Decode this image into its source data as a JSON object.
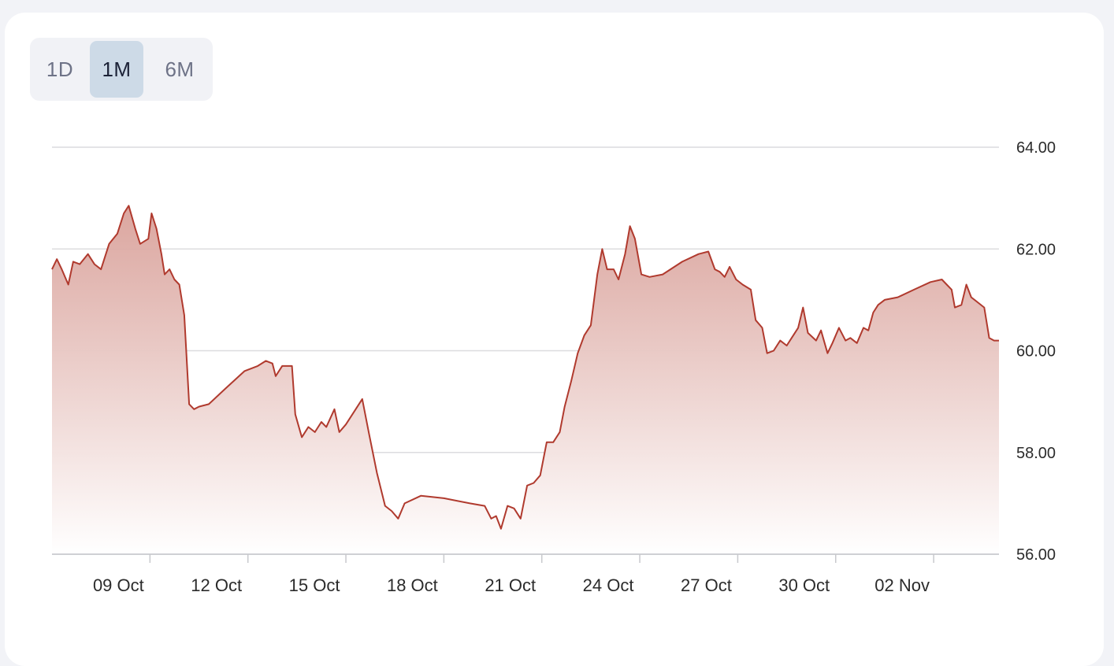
{
  "range_selector": {
    "tabs": [
      {
        "label": "1D",
        "active": false
      },
      {
        "label": "1M",
        "active": true
      },
      {
        "label": "6M",
        "active": false
      }
    ]
  },
  "colors": {
    "line": "#b03a2e",
    "fill_top": "#d9a19a",
    "fill_bottom": "#ffffff",
    "grid": "#dcdcdf",
    "active_tab": "#cddae7"
  },
  "chart_data": {
    "type": "area",
    "title": "",
    "xlabel": "",
    "ylabel": "",
    "ylim": [
      56,
      64
    ],
    "yticks": [
      "56.00",
      "58.00",
      "60.00",
      "62.00",
      "64.00"
    ],
    "y_axis_position": "right",
    "grid": true,
    "xticks": [
      "09 Oct",
      "12 Oct",
      "15 Oct",
      "18 Oct",
      "21 Oct",
      "24 Oct",
      "27 Oct",
      "30 Oct",
      "02 Nov"
    ],
    "x_range": [
      "06 Oct",
      "05 Nov"
    ],
    "series": [
      {
        "values": [
          [
            0.0,
            61.6
          ],
          [
            0.15,
            61.8
          ],
          [
            0.3,
            61.6
          ],
          [
            0.5,
            61.3
          ],
          [
            0.65,
            61.75
          ],
          [
            0.85,
            61.7
          ],
          [
            1.1,
            61.9
          ],
          [
            1.3,
            61.7
          ],
          [
            1.5,
            61.6
          ],
          [
            1.75,
            62.1
          ],
          [
            2.0,
            62.3
          ],
          [
            2.2,
            62.7
          ],
          [
            2.35,
            62.85
          ],
          [
            2.55,
            62.4
          ],
          [
            2.7,
            62.1
          ],
          [
            2.95,
            62.2
          ],
          [
            3.05,
            62.7
          ],
          [
            3.2,
            62.4
          ],
          [
            3.35,
            61.9
          ],
          [
            3.45,
            61.5
          ],
          [
            3.6,
            61.6
          ],
          [
            3.75,
            61.4
          ],
          [
            3.9,
            61.3
          ],
          [
            4.05,
            60.7
          ],
          [
            4.2,
            58.95
          ],
          [
            4.35,
            58.85
          ],
          [
            4.5,
            58.9
          ],
          [
            4.8,
            58.95
          ],
          [
            5.3,
            59.25
          ],
          [
            5.9,
            59.6
          ],
          [
            6.3,
            59.7
          ],
          [
            6.55,
            59.8
          ],
          [
            6.75,
            59.75
          ],
          [
            6.85,
            59.5
          ],
          [
            7.05,
            59.7
          ],
          [
            7.35,
            59.7
          ],
          [
            7.45,
            58.75
          ],
          [
            7.65,
            58.3
          ],
          [
            7.85,
            58.5
          ],
          [
            8.05,
            58.4
          ],
          [
            8.25,
            58.6
          ],
          [
            8.4,
            58.5
          ],
          [
            8.65,
            58.85
          ],
          [
            8.8,
            58.4
          ],
          [
            9.0,
            58.55
          ],
          [
            9.3,
            58.85
          ],
          [
            9.5,
            59.05
          ],
          [
            9.7,
            58.4
          ],
          [
            9.95,
            57.6
          ],
          [
            10.2,
            56.95
          ],
          [
            10.4,
            56.85
          ],
          [
            10.6,
            56.7
          ],
          [
            10.8,
            57.0
          ],
          [
            11.3,
            57.15
          ],
          [
            12.0,
            57.1
          ],
          [
            12.8,
            57.0
          ],
          [
            13.25,
            56.95
          ],
          [
            13.45,
            56.7
          ],
          [
            13.6,
            56.75
          ],
          [
            13.75,
            56.5
          ],
          [
            13.95,
            56.95
          ],
          [
            14.15,
            56.9
          ],
          [
            14.35,
            56.7
          ],
          [
            14.55,
            57.35
          ],
          [
            14.75,
            57.4
          ],
          [
            14.95,
            57.55
          ],
          [
            15.15,
            58.2
          ],
          [
            15.35,
            58.2
          ],
          [
            15.55,
            58.4
          ],
          [
            15.7,
            58.9
          ],
          [
            15.9,
            59.4
          ],
          [
            16.1,
            59.95
          ],
          [
            16.3,
            60.3
          ],
          [
            16.5,
            60.5
          ],
          [
            16.7,
            61.5
          ],
          [
            16.85,
            62.0
          ],
          [
            17.0,
            61.6
          ],
          [
            17.2,
            61.6
          ],
          [
            17.35,
            61.4
          ],
          [
            17.55,
            61.9
          ],
          [
            17.7,
            62.45
          ],
          [
            17.85,
            62.2
          ],
          [
            18.05,
            61.5
          ],
          [
            18.3,
            61.45
          ],
          [
            18.7,
            61.5
          ],
          [
            19.3,
            61.75
          ],
          [
            19.8,
            61.9
          ],
          [
            20.1,
            61.95
          ],
          [
            20.3,
            61.6
          ],
          [
            20.45,
            61.55
          ],
          [
            20.6,
            61.45
          ],
          [
            20.75,
            61.65
          ],
          [
            20.95,
            61.4
          ],
          [
            21.15,
            61.3
          ],
          [
            21.4,
            61.2
          ],
          [
            21.55,
            60.6
          ],
          [
            21.75,
            60.45
          ],
          [
            21.9,
            59.95
          ],
          [
            22.1,
            60.0
          ],
          [
            22.3,
            60.2
          ],
          [
            22.5,
            60.1
          ],
          [
            22.65,
            60.25
          ],
          [
            22.85,
            60.45
          ],
          [
            23.0,
            60.85
          ],
          [
            23.15,
            60.35
          ],
          [
            23.4,
            60.2
          ],
          [
            23.55,
            60.4
          ],
          [
            23.75,
            59.95
          ],
          [
            23.9,
            60.15
          ],
          [
            24.1,
            60.45
          ],
          [
            24.3,
            60.2
          ],
          [
            24.45,
            60.25
          ],
          [
            24.65,
            60.15
          ],
          [
            24.85,
            60.45
          ],
          [
            25.0,
            60.4
          ],
          [
            25.15,
            60.75
          ],
          [
            25.3,
            60.9
          ],
          [
            25.5,
            61.0
          ],
          [
            25.9,
            61.05
          ],
          [
            26.4,
            61.2
          ],
          [
            26.9,
            61.35
          ],
          [
            27.25,
            61.4
          ],
          [
            27.4,
            61.3
          ],
          [
            27.55,
            61.2
          ],
          [
            27.65,
            60.85
          ],
          [
            27.85,
            60.9
          ],
          [
            28.0,
            61.3
          ],
          [
            28.15,
            61.05
          ],
          [
            28.35,
            60.95
          ],
          [
            28.55,
            60.85
          ],
          [
            28.7,
            60.25
          ],
          [
            28.85,
            60.2
          ],
          [
            29.0,
            60.2
          ]
        ]
      }
    ]
  }
}
